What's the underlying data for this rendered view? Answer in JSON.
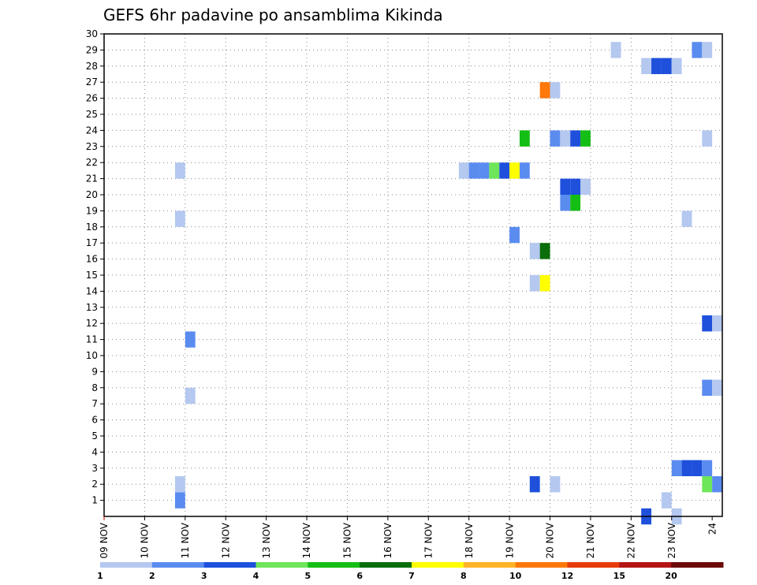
{
  "chart_data": {
    "type": "heatmap",
    "title": "GEFS 6hr padavine po ansamblima Kikinda",
    "x_tick_labels": [
      "09 NOV",
      "10 NOV",
      "11 NOV",
      "12 NOV",
      "13 NOV",
      "14 NOV",
      "15 NOV",
      "16 NOV",
      "17 NOV",
      "18 NOV",
      "19 NOV",
      "20 NOV",
      "21 NOV",
      "22 NOV",
      "23 NOV",
      "24"
    ],
    "y_tick_labels": [
      "1",
      "2",
      "3",
      "4",
      "5",
      "6",
      "7",
      "8",
      "9",
      "10",
      "11",
      "12",
      "13",
      "14",
      "15",
      "16",
      "17",
      "18",
      "19",
      "20",
      "21",
      "22",
      "23",
      "24",
      "25",
      "26",
      "27",
      "28",
      "29",
      "30"
    ],
    "xlim_days": [
      0,
      15.25
    ],
    "ylim_members": [
      0,
      30
    ],
    "grid": true,
    "legend": {
      "placement": "bottom",
      "labels": [
        "1",
        "2",
        "3",
        "4",
        "5",
        "6",
        "7",
        "8",
        "10",
        "12",
        "15",
        "20"
      ],
      "colors": [
        "#b4c8f0",
        "#5a8cf0",
        "#1e50dc",
        "#6ee65a",
        "#14be14",
        "#0a6e0a",
        "#ffff00",
        "#ffb428",
        "#ff780a",
        "#e63c0a",
        "#b41414",
        "#6e0a0a"
      ]
    },
    "cells": [
      {
        "d": 1.875,
        "m": 1,
        "l": 2
      },
      {
        "d": 1.875,
        "m": 2,
        "l": 1
      },
      {
        "d": 2.125,
        "m": 11,
        "l": 2
      },
      {
        "d": 2.125,
        "m": 7.5,
        "l": 1
      },
      {
        "d": 1.875,
        "m": 18.5,
        "l": 1
      },
      {
        "d": 1.875,
        "m": 21.5,
        "l": 1
      },
      {
        "d": 8.875,
        "m": 21.5,
        "l": 1
      },
      {
        "d": 9.125,
        "m": 21.5,
        "l": 2
      },
      {
        "d": 9.375,
        "m": 21.5,
        "l": 2
      },
      {
        "d": 9.625,
        "m": 21.5,
        "l": 4
      },
      {
        "d": 9.875,
        "m": 21.5,
        "l": 3
      },
      {
        "d": 10.125,
        "m": 21.5,
        "l": 7
      },
      {
        "d": 10.375,
        "m": 21.5,
        "l": 2
      },
      {
        "d": 10.375,
        "m": 23.5,
        "l": 5
      },
      {
        "d": 10.875,
        "m": 26.5,
        "l": 9
      },
      {
        "d": 11.125,
        "m": 26.5,
        "l": 1
      },
      {
        "d": 11.125,
        "m": 23.5,
        "l": 2
      },
      {
        "d": 11.375,
        "m": 23.5,
        "l": 1
      },
      {
        "d": 11.625,
        "m": 23.5,
        "l": 3
      },
      {
        "d": 11.875,
        "m": 23.5,
        "l": 5
      },
      {
        "d": 11.375,
        "m": 20.5,
        "l": 3
      },
      {
        "d": 11.625,
        "m": 20.5,
        "l": 3
      },
      {
        "d": 11.875,
        "m": 20.5,
        "l": 1
      },
      {
        "d": 11.375,
        "m": 19.5,
        "l": 2
      },
      {
        "d": 11.625,
        "m": 19.5,
        "l": 5
      },
      {
        "d": 10.125,
        "m": 17.5,
        "l": 2
      },
      {
        "d": 10.625,
        "m": 16.5,
        "l": 1
      },
      {
        "d": 10.875,
        "m": 16.5,
        "l": 6
      },
      {
        "d": 10.625,
        "m": 14.5,
        "l": 1
      },
      {
        "d": 10.875,
        "m": 14.5,
        "l": 7
      },
      {
        "d": 10.625,
        "m": 2,
        "l": 3
      },
      {
        "d": 11.125,
        "m": 2,
        "l": 1
      },
      {
        "d": 12.625,
        "m": 29,
        "l": 1
      },
      {
        "d": 13.375,
        "m": 28,
        "l": 1
      },
      {
        "d": 13.625,
        "m": 28,
        "l": 3
      },
      {
        "d": 13.875,
        "m": 28,
        "l": 3
      },
      {
        "d": 14.125,
        "m": 28,
        "l": 1
      },
      {
        "d": 14.625,
        "m": 29,
        "l": 2
      },
      {
        "d": 14.875,
        "m": 29,
        "l": 1
      },
      {
        "d": 14.875,
        "m": 23.5,
        "l": 1
      },
      {
        "d": 14.375,
        "m": 18.5,
        "l": 1
      },
      {
        "d": 14.875,
        "m": 12,
        "l": 3
      },
      {
        "d": 15.125,
        "m": 12,
        "l": 1
      },
      {
        "d": 14.875,
        "m": 8,
        "l": 2
      },
      {
        "d": 15.125,
        "m": 8,
        "l": 1
      },
      {
        "d": 14.125,
        "m": 3,
        "l": 2
      },
      {
        "d": 14.375,
        "m": 3,
        "l": 3
      },
      {
        "d": 14.625,
        "m": 3,
        "l": 3
      },
      {
        "d": 14.875,
        "m": 3,
        "l": 2
      },
      {
        "d": 14.875,
        "m": 2,
        "l": 4
      },
      {
        "d": 15.125,
        "m": 2,
        "l": 2
      },
      {
        "d": 13.875,
        "m": 1,
        "l": 1
      },
      {
        "d": 13.375,
        "m": 0,
        "l": 3
      },
      {
        "d": 14.125,
        "m": 0,
        "l": 1
      }
    ]
  }
}
